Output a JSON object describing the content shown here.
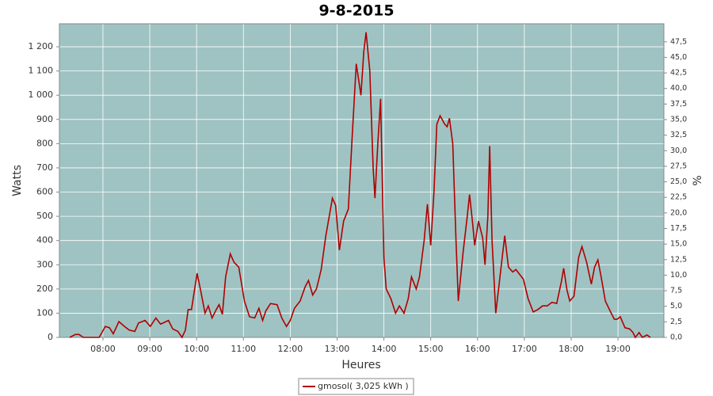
{
  "chart_data": {
    "type": "line",
    "title": "9-8-2015",
    "x_label": "Heures",
    "y_label": "Watts",
    "y2_label": "%",
    "x": [
      7.29,
      7.41,
      7.49,
      7.58,
      7.92,
      8.05,
      8.14,
      8.22,
      8.34,
      8.46,
      8.56,
      8.68,
      8.76,
      8.9,
      9.01,
      9.13,
      9.23,
      9.4,
      9.49,
      9.6,
      9.69,
      9.76,
      9.82,
      9.89,
      10.01,
      10.09,
      10.18,
      10.25,
      10.33,
      10.42,
      10.48,
      10.55,
      10.62,
      10.72,
      10.8,
      10.9,
      11.02,
      11.13,
      11.24,
      11.33,
      11.41,
      11.48,
      11.58,
      11.72,
      11.82,
      11.92,
      12.0,
      12.09,
      12.21,
      12.32,
      12.39,
      12.48,
      12.56,
      12.66,
      12.76,
      12.9,
      12.97,
      13.05,
      13.14,
      13.24,
      13.32,
      13.41,
      13.51,
      13.57,
      13.62,
      13.7,
      13.77,
      13.81,
      13.87,
      13.93,
      14.0,
      14.05,
      14.15,
      14.25,
      14.33,
      14.43,
      14.52,
      14.59,
      14.69,
      14.76,
      14.86,
      14.93,
      15.0,
      15.07,
      15.13,
      15.2,
      15.3,
      15.35,
      15.4,
      15.47,
      15.54,
      15.59,
      15.69,
      15.78,
      15.83,
      15.89,
      15.94,
      16.02,
      16.11,
      16.16,
      16.22,
      16.26,
      16.31,
      16.39,
      16.48,
      16.58,
      16.66,
      16.75,
      16.82,
      16.9,
      16.98,
      17.08,
      17.19,
      17.29,
      17.39,
      17.49,
      17.59,
      17.69,
      17.79,
      17.84,
      17.91,
      17.97,
      18.06,
      18.16,
      18.23,
      18.33,
      18.43,
      18.5,
      18.57,
      18.64,
      18.73,
      18.83,
      18.92,
      18.98,
      19.05,
      19.15,
      19.25,
      19.32,
      19.37,
      19.45,
      19.52,
      19.62,
      19.69
    ],
    "series": [
      {
        "name": "gmosol( 3,025 kWh )",
        "color": "#b00000",
        "values": [
          0,
          12,
          12,
          0,
          0,
          45,
          40,
          15,
          65,
          45,
          30,
          25,
          60,
          70,
          45,
          80,
          55,
          70,
          35,
          25,
          0,
          30,
          115,
          115,
          265,
          190,
          100,
          130,
          80,
          115,
          135,
          95,
          250,
          345,
          310,
          290,
          150,
          85,
          80,
          120,
          70,
          110,
          140,
          135,
          80,
          45,
          70,
          120,
          150,
          210,
          235,
          175,
          200,
          280,
          420,
          575,
          545,
          360,
          480,
          530,
          820,
          1130,
          1000,
          1180,
          1260,
          1100,
          700,
          575,
          800,
          985,
          330,
          200,
          160,
          100,
          130,
          100,
          160,
          250,
          200,
          250,
          400,
          550,
          380,
          600,
          880,
          915,
          880,
          870,
          905,
          800,
          400,
          150,
          350,
          500,
          590,
          480,
          380,
          480,
          410,
          300,
          500,
          790,
          400,
          100,
          250,
          420,
          290,
          270,
          280,
          260,
          240,
          160,
          105,
          115,
          130,
          130,
          145,
          140,
          230,
          285,
          195,
          150,
          170,
          330,
          375,
          310,
          220,
          290,
          320,
          250,
          150,
          110,
          75,
          75,
          85,
          40,
          35,
          20,
          0,
          20,
          0,
          10,
          0
        ]
      }
    ],
    "xlim": [
      7.07,
      19.98
    ],
    "xticks": [
      {
        "value": 8,
        "label": "08:00"
      },
      {
        "value": 9,
        "label": "09:00"
      },
      {
        "value": 10,
        "label": "10:00"
      },
      {
        "value": 11,
        "label": "11:00"
      },
      {
        "value": 12,
        "label": "12:00"
      },
      {
        "value": 13,
        "label": "13:00"
      },
      {
        "value": 14,
        "label": "14:00"
      },
      {
        "value": 15,
        "label": "15:00"
      },
      {
        "value": 16,
        "label": "16:00"
      },
      {
        "value": 17,
        "label": "17:00"
      },
      {
        "value": 18,
        "label": "18:00"
      },
      {
        "value": 19,
        "label": "19:00"
      }
    ],
    "ylim": [
      0,
      1295
    ],
    "yticks": [
      0,
      100,
      200,
      300,
      400,
      500,
      600,
      700,
      800,
      900,
      {
        "value": 1000,
        "label": "1 000"
      },
      {
        "value": 1100,
        "label": "1 100"
      },
      {
        "value": 1200,
        "label": "1 200"
      }
    ],
    "y2lim": [
      0,
      50.4
    ],
    "y2ticks": [
      {
        "value": 0,
        "label": "0,0"
      },
      {
        "value": 2.5,
        "label": "2,5"
      },
      {
        "value": 5,
        "label": "5,0"
      },
      {
        "value": 7.5,
        "label": "7,5"
      },
      {
        "value": 10,
        "label": "10,0"
      },
      {
        "value": 12.5,
        "label": "12,5"
      },
      {
        "value": 15,
        "label": "15,0"
      },
      {
        "value": 17.5,
        "label": "17,5"
      },
      {
        "value": 20,
        "label": "20,0"
      },
      {
        "value": 22.5,
        "label": "22,5"
      },
      {
        "value": 25,
        "label": "25,0"
      },
      {
        "value": 27.5,
        "label": "27,5"
      },
      {
        "value": 30,
        "label": "30,0"
      },
      {
        "value": 32.5,
        "label": "32,5"
      },
      {
        "value": 35,
        "label": "35,0"
      },
      {
        "value": 37.5,
        "label": "37,5"
      },
      {
        "value": 40,
        "label": "40,0"
      },
      {
        "value": 42.5,
        "label": "42,5"
      },
      {
        "value": 45,
        "label": "45,0"
      },
      {
        "value": 47.5,
        "label": "47,5"
      }
    ],
    "grid": true,
    "plot_background": "#9fc3c2",
    "legend": "bottom"
  }
}
